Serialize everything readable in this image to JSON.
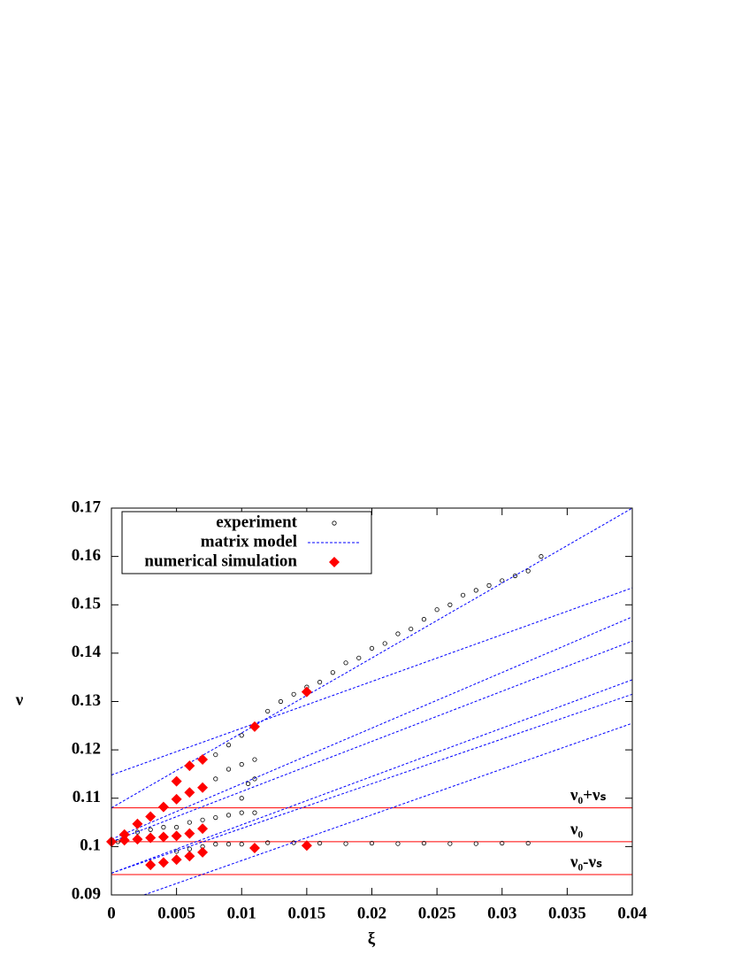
{
  "chart_data": {
    "type": "scatter",
    "x_label": "ξ",
    "y_label": "ν",
    "xlim": [
      0,
      0.04
    ],
    "ylim": [
      0.09,
      0.17
    ],
    "xticks": [
      0,
      0.005,
      0.01,
      0.015,
      0.02,
      0.025,
      0.03,
      0.035,
      0.04
    ],
    "yticks": [
      0.09,
      0.1,
      0.11,
      0.12,
      0.13,
      0.14,
      0.15,
      0.16,
      0.17
    ],
    "legend": "upper left",
    "series": [
      {
        "name": "experiment",
        "color": "#000000",
        "marker": "circle",
        "x": [
          0.006,
          0.007,
          0.008,
          0.009,
          0.01,
          0.011,
          0.012,
          0.013,
          0.014,
          0.015,
          0.016,
          0.017,
          0.018,
          0.019,
          0.02,
          0.021,
          0.022,
          0.023,
          0.024,
          0.025,
          0.026,
          0.027,
          0.028,
          0.029,
          0.03,
          0.031,
          0.032,
          0.033,
          0.004,
          0.005,
          0.006,
          0.007,
          0.008,
          0.009,
          0.01,
          0.011,
          0.0105,
          0.011,
          0.01,
          0.001,
          0.002,
          0.003,
          0.004,
          0.005,
          0.006,
          0.007,
          0.008,
          0.009,
          0.01,
          0.011,
          0.005,
          0.006,
          0.007,
          0.008,
          0.009,
          0.01,
          0.012,
          0.014,
          0.016,
          0.018,
          0.02,
          0.022,
          0.024,
          0.026,
          0.028,
          0.03,
          0.032,
          0,
          0.0005,
          0.001,
          0.002,
          0.003
        ],
        "values": [
          0.117,
          0.118,
          0.119,
          0.121,
          0.123,
          0.125,
          0.128,
          0.13,
          0.1315,
          0.133,
          0.134,
          0.136,
          0.138,
          0.139,
          0.141,
          0.142,
          0.144,
          0.145,
          0.147,
          0.149,
          0.15,
          0.152,
          0.153,
          0.154,
          0.155,
          0.156,
          0.157,
          0.16,
          0.108,
          0.11,
          0.111,
          0.112,
          0.114,
          0.116,
          0.117,
          0.118,
          0.113,
          0.114,
          0.11,
          0.102,
          0.103,
          0.1035,
          0.104,
          0.104,
          0.105,
          0.1055,
          0.106,
          0.1065,
          0.107,
          0.107,
          0.099,
          0.0995,
          0.1,
          0.1005,
          0.1005,
          0.1005,
          0.1008,
          0.1008,
          0.1007,
          0.1006,
          0.1007,
          0.1006,
          0.1007,
          0.1006,
          0.1006,
          0.1007,
          0.1007,
          0.1013,
          0.101,
          0.1015,
          0.1015,
          0.1016
        ]
      },
      {
        "name": "matrix model",
        "color": "#0000ff",
        "line": "dashed",
        "lines": [
          {
            "x": [
              0,
              0.04
            ],
            "values": [
              0.1148,
              0.1535
            ]
          },
          {
            "x": [
              0,
              0.04
            ],
            "values": [
              0.108,
              0.17
            ]
          },
          {
            "x": [
              0,
              0.04
            ],
            "values": [
              0.1015,
              0.1475
            ]
          },
          {
            "x": [
              0,
              0.04
            ],
            "values": [
              0.101,
              0.1425
            ]
          },
          {
            "x": [
              0,
              0.04
            ],
            "values": [
              0.0945,
              0.1345
            ]
          },
          {
            "x": [
              0,
              0.04
            ],
            "values": [
              0.0945,
              0.1315
            ]
          },
          {
            "x": [
              0.0025,
              0.04
            ],
            "values": [
              0.09,
              0.1255
            ]
          }
        ]
      },
      {
        "name": "numerical simulation",
        "color": "#ff0000",
        "marker": "diamond",
        "x": [
          0,
          0.001,
          0.001,
          0.002,
          0.002,
          0.003,
          0.003,
          0.003,
          0.004,
          0.004,
          0.004,
          0.005,
          0.005,
          0.005,
          0.005,
          0.006,
          0.006,
          0.006,
          0.006,
          0.007,
          0.007,
          0.007,
          0.007,
          0.011,
          0.011,
          0.015,
          0.015
        ],
        "values": [
          0.101,
          0.1025,
          0.1013,
          0.1047,
          0.1015,
          0.1062,
          0.1018,
          0.0962,
          0.1082,
          0.102,
          0.0967,
          0.1135,
          0.1098,
          0.1022,
          0.0973,
          0.1167,
          0.1112,
          0.1027,
          0.098,
          0.118,
          0.1122,
          0.1037,
          0.0988,
          0.1248,
          0.0997,
          0.132,
          0.1002
        ]
      }
    ],
    "reference_lines": [
      {
        "value": 0.108,
        "label": "ν₀+νₛ",
        "color": "#ff0000"
      },
      {
        "value": 0.101,
        "label": "ν₀",
        "color": "#ff0000"
      },
      {
        "value": 0.0942,
        "label": "ν₀-νₛ",
        "color": "#ff0000"
      }
    ]
  }
}
